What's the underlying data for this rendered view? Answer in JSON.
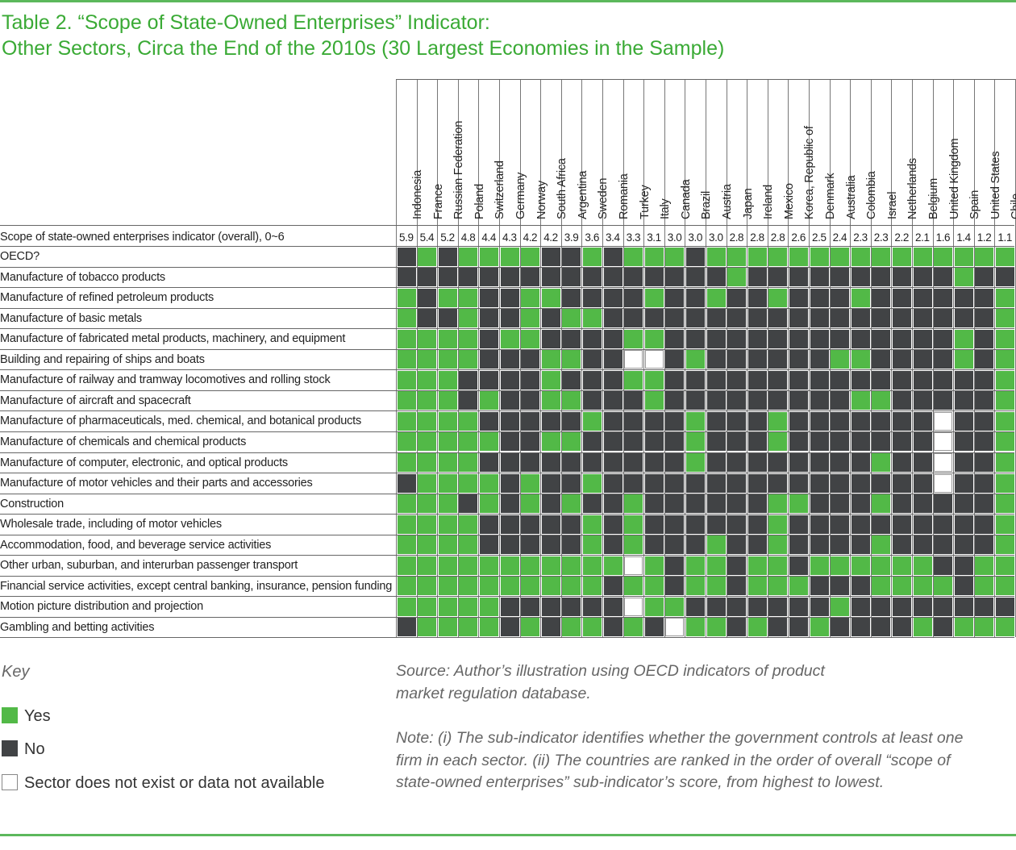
{
  "title_line1": "Table 2. “Scope of State-Owned Enterprises” Indicator:",
  "title_line2": "Other Sectors, Circa the End of the 2010s (30 Largest Economies in the Sample)",
  "countries": [
    "Indonesia",
    "France",
    "Russian Federation",
    "Poland",
    "Switzerland",
    "Germany",
    "Norway",
    "South Africa",
    "Argentina",
    "Sweden",
    "Romania",
    "Turkey",
    "Italy",
    "Canada",
    "Brazil",
    "Austria",
    "Japan",
    "Ireland",
    "Mexico",
    "Korea, Republic of",
    "Denmark",
    "Australia",
    "Colombia",
    "Israel",
    "Netherlands",
    "Belgium",
    "United Kingdom",
    "Spain",
    "United States",
    "Chile"
  ],
  "score_row_label": "Scope of state-owned enterprises indicator (overall), 0~6",
  "scores": [
    "5.9",
    "5.4",
    "5.2",
    "4.8",
    "4.4",
    "4.3",
    "4.2",
    "4.2",
    "3.9",
    "3.6",
    "3.4",
    "3.3",
    "3.1",
    "3.0",
    "3.0",
    "3.0",
    "2.8",
    "2.8",
    "2.8",
    "2.6",
    "2.5",
    "2.4",
    "2.3",
    "2.3",
    "2.2",
    "2.1",
    "1.6",
    "1.4",
    "1.2",
    "1.1"
  ],
  "rows": [
    {
      "label": "OECD?",
      "cells": "NYNYYYYNNYNYYYNYYYYYYYYYYYYYYY"
    },
    {
      "label": "Manufacture of tobacco products",
      "cells": "NNNNNNNNNNNNNNNNYNNNNNNNNNNYNN"
    },
    {
      "label": "Manufacture of refined petroleum products",
      "cells": "YNYYNNYYNNNNYNNYNNYNNNYNNNNNNY"
    },
    {
      "label": "Manufacture of basic metals",
      "cells": "YNNYNNYNYYNNNNNNNNNNNNNNNNNNNY"
    },
    {
      "label": "Manufacture of fabricated metal products, machinery, and equipment",
      "cells": "YYYYNYYNNNNYYNNNNNNNNNNNNNNYNY"
    },
    {
      "label": "Building and repairing of ships and boats",
      "cells": "YYYYNNNYYNNXXNYNNNNNNYYNNNNYNY"
    },
    {
      "label": "Manufacture of railway and tramway locomotives and rolling stock",
      "cells": "YYYNNNNYNNNYYNNNNNNNNNNNNNNNNY"
    },
    {
      "label": "Manufacture of aircraft and spacecraft",
      "cells": "YYYNYNNYYNNNYNNNNNNNNNYYNNNNNY"
    },
    {
      "label": "Manufacture of pharmaceuticals, med. chemical, and botanical products",
      "cells": "YYYYNNNNNYNNNNYNNNYNNNNNNNXNNY"
    },
    {
      "label": "Manufacture of chemicals and chemical products",
      "cells": "YYYYYNNYYNNNNNYNNNYNNNNNNNXNNY"
    },
    {
      "label": "Manufacture of computer, electronic, and optical products",
      "cells": "YYYYNNNNNNNNNNYNNNNNNNNYNNXNNY"
    },
    {
      "label": "Manufacture of motor vehicles and their parts and accessories",
      "cells": "NYYYYNYNNYNNNNNNNNNNNNNNNNXNNY"
    },
    {
      "label": "Construction",
      "cells": "YYYNYNYNYNNYNNNNNNYYNNNYNNNNNY"
    },
    {
      "label": "Wholesale trade, including of motor vehicles",
      "cells": "YYYYNNNNNYNYNNNNNNYNNNNNNNNNNY"
    },
    {
      "label": "Accommodation, food, and beverage service activities",
      "cells": "YYYYNNNNNYNYNNNYNNYNNNNYNNNNNY"
    },
    {
      "label": "Other urban, suburban, and interurban passenger transport",
      "cells": "YYYYYYYYYYYXYNYYNYYNYYYYYYNNYY"
    },
    {
      "label": "Financial service activities, except central banking, insurance, pension funding",
      "cells": "YYYYYYYYYYNYYNYYNYYYNNNYYYYNYY"
    },
    {
      "label": "Motion picture distribution and projection",
      "cells": "YYYYYNNNNNNXYYNNNNNNNYNNNNNNNN"
    },
    {
      "label": "Gambling and betting activities",
      "cells": "NYYYYNYNYYNYNXYYNYNNYNNNNYNYYY"
    }
  ],
  "key": {
    "title": "Key",
    "yes": "Yes",
    "no": "No",
    "na": "Sector does not exist or data not available"
  },
  "source": "Source: Author’s illustration using OECD indicators of product market regulation database.",
  "note": "Note: (i) The sub-indicator identifies whether the government controls at least one firm in each sector. (ii) The countries are ranked in the order of overall “scope of state-owned enterprises” sub-indicator’s score, from highest to lowest.",
  "colors": {
    "yes": "#52b947",
    "no": "#414345",
    "accent": "#3aaa35"
  }
}
